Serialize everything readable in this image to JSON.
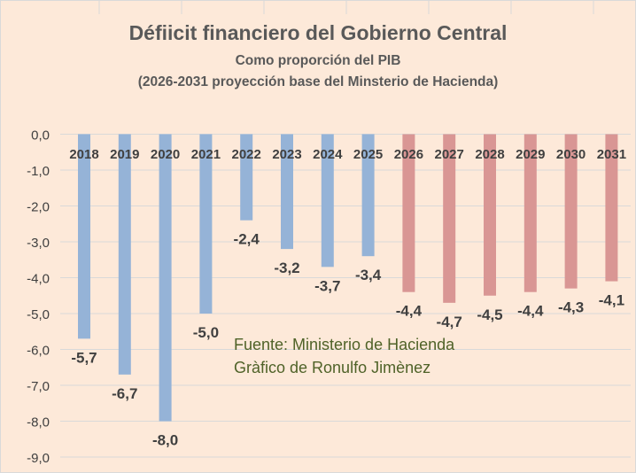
{
  "chart_data": {
    "type": "bar",
    "title": "Défiicit financiero del Gobierno Central",
    "subtitle": [
      "Como proporción del PIB",
      "(2026-2031 proyección base del Minsterio de Hacienda)"
    ],
    "xlabel": "",
    "ylabel": "",
    "categories": [
      "2018",
      "2019",
      "2020",
      "2021",
      "2022",
      "2023",
      "2024",
      "2025",
      "2026",
      "2027",
      "2028",
      "2029",
      "2030",
      "2031"
    ],
    "values": [
      -5.7,
      -6.7,
      -8.0,
      -5.0,
      -2.4,
      -3.2,
      -3.7,
      -3.4,
      -4.4,
      -4.7,
      -4.5,
      -4.4,
      -4.3,
      -4.1
    ],
    "data_labels": [
      "-5,7",
      "-6,7",
      "-8,0",
      "-5,0",
      "-2,4",
      "-3,2",
      "-3,7",
      "-3,4",
      "-4,4",
      "-4,7",
      "-4,5",
      "-4,4",
      "-4,3",
      "-4,1"
    ],
    "ylim": [
      -9,
      0
    ],
    "yticks": [
      "0,0",
      "-1,0",
      "-2,0",
      "-3,0",
      "-4,0",
      "-5,0",
      "-6,0",
      "-7,0",
      "-8,0",
      "-9,0"
    ],
    "grid": true,
    "colors": {
      "historical": "#95b3d7",
      "projection": "#d99694",
      "background": "#fde9d9",
      "grid": "#d9d9d9",
      "text": "#404040",
      "title": "#595959",
      "note": "#4f6228"
    },
    "projection_from": "2026"
  },
  "note": {
    "line1": "Fuente:  Ministerio de Hacienda",
    "line2": "Gràfico de Ronulfo Jimènez"
  }
}
